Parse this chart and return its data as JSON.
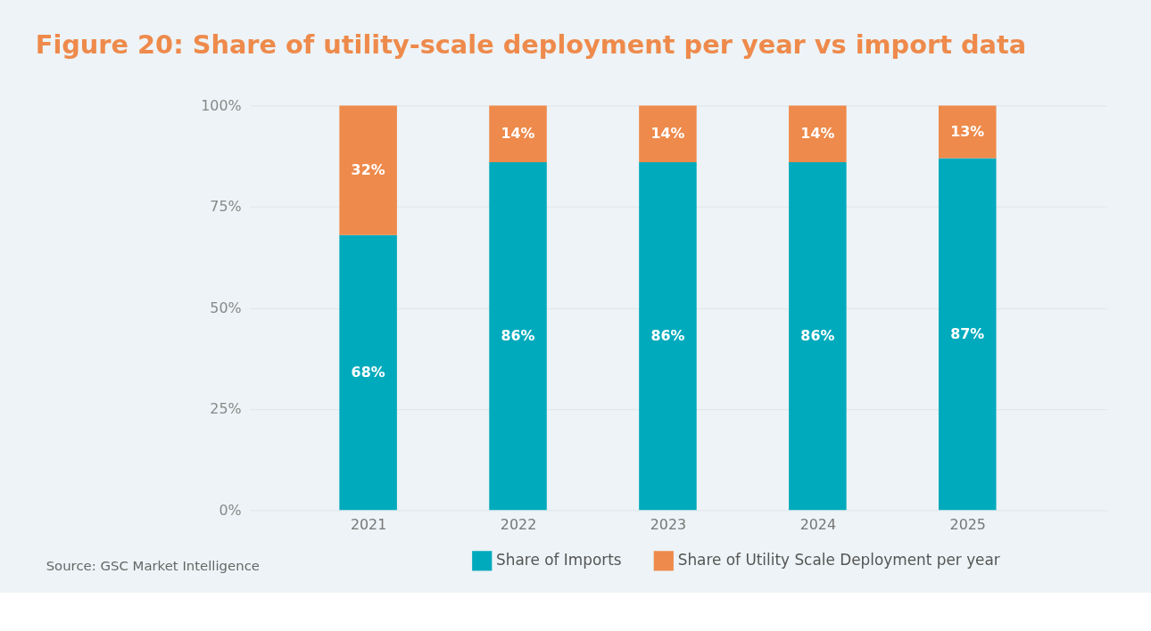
{
  "chart_data": {
    "type": "bar",
    "title": "Figure 20: Share of utility-scale deployment per year vs import data",
    "categories": [
      "2021",
      "2022",
      "2023",
      "2024",
      "2025"
    ],
    "stacked": true,
    "series": [
      {
        "name": "Share of Imports",
        "color": "#00aabd",
        "values": [
          68,
          86,
          86,
          86,
          87
        ],
        "value_labels": [
          "68%",
          "86%",
          "86%",
          "86%",
          "87%"
        ]
      },
      {
        "name": "Share of Utility Scale Deployment per year",
        "color": "#ee8a4b",
        "values": [
          32,
          14,
          14,
          14,
          13
        ],
        "value_labels": [
          "32%",
          "14%",
          "14%",
          "14%",
          "13%"
        ]
      }
    ],
    "ylim": [
      0,
      100
    ],
    "yticks": [
      {
        "value": 0,
        "label": "0%"
      },
      {
        "value": 25,
        "label": "25%"
      },
      {
        "value": 50,
        "label": "50%"
      },
      {
        "value": 75,
        "label": "75%"
      },
      {
        "value": 100,
        "label": "100%"
      }
    ],
    "grid": "y",
    "legend": "bottom",
    "annotations": [
      "Source: GSC Market Intelligence"
    ]
  }
}
